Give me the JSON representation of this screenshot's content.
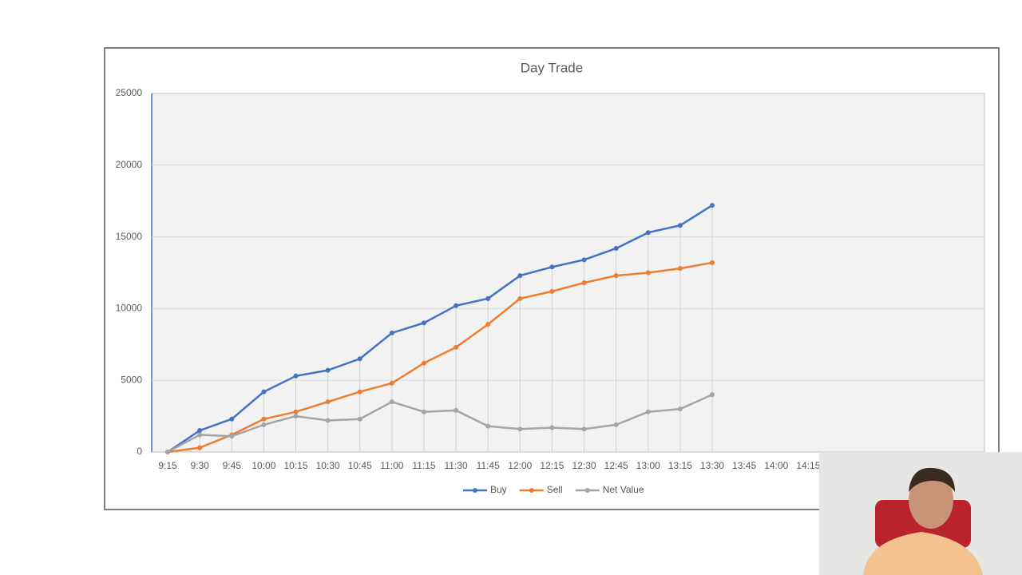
{
  "chart_data": {
    "type": "line",
    "title": "Day Trade",
    "categories": [
      "9:15",
      "9:30",
      "9:45",
      "10:00",
      "10:15",
      "10:30",
      "10:45",
      "11:00",
      "11:15",
      "11:30",
      "11:45",
      "12:00",
      "12:15",
      "12:30",
      "12:45",
      "13:00",
      "13:15",
      "13:30",
      "13:45",
      "14:00",
      "14:15",
      null,
      null,
      null,
      null,
      null
    ],
    "series": [
      {
        "name": "Buy",
        "color": "#4472c4",
        "values": [
          0,
          1500,
          2300,
          4200,
          5300,
          5700,
          6500,
          8300,
          9000,
          10200,
          10700,
          12300,
          12900,
          13400,
          14200,
          15300,
          15800,
          17200,
          null,
          null,
          null,
          null,
          null,
          null,
          null,
          null
        ]
      },
      {
        "name": "Sell",
        "color": "#ed7d31",
        "values": [
          0,
          300,
          1200,
          2300,
          2800,
          3500,
          4200,
          4800,
          6200,
          7300,
          8900,
          10700,
          11200,
          11800,
          12300,
          12500,
          12800,
          13200,
          null,
          null,
          null,
          null,
          null,
          null,
          null,
          null
        ]
      },
      {
        "name": "Net Value",
        "color": "#a5a5a5",
        "values": [
          0,
          1200,
          1100,
          1900,
          2500,
          2200,
          2300,
          3500,
          2800,
          2900,
          1800,
          1600,
          1700,
          1600,
          1900,
          2800,
          3000,
          4000,
          null,
          null,
          null,
          null,
          null,
          null,
          null,
          null
        ]
      }
    ],
    "ylim": [
      0,
      25000
    ],
    "yticks": [
      0,
      5000,
      10000,
      15000,
      20000,
      25000
    ],
    "grid": true,
    "legend": "bottom"
  }
}
